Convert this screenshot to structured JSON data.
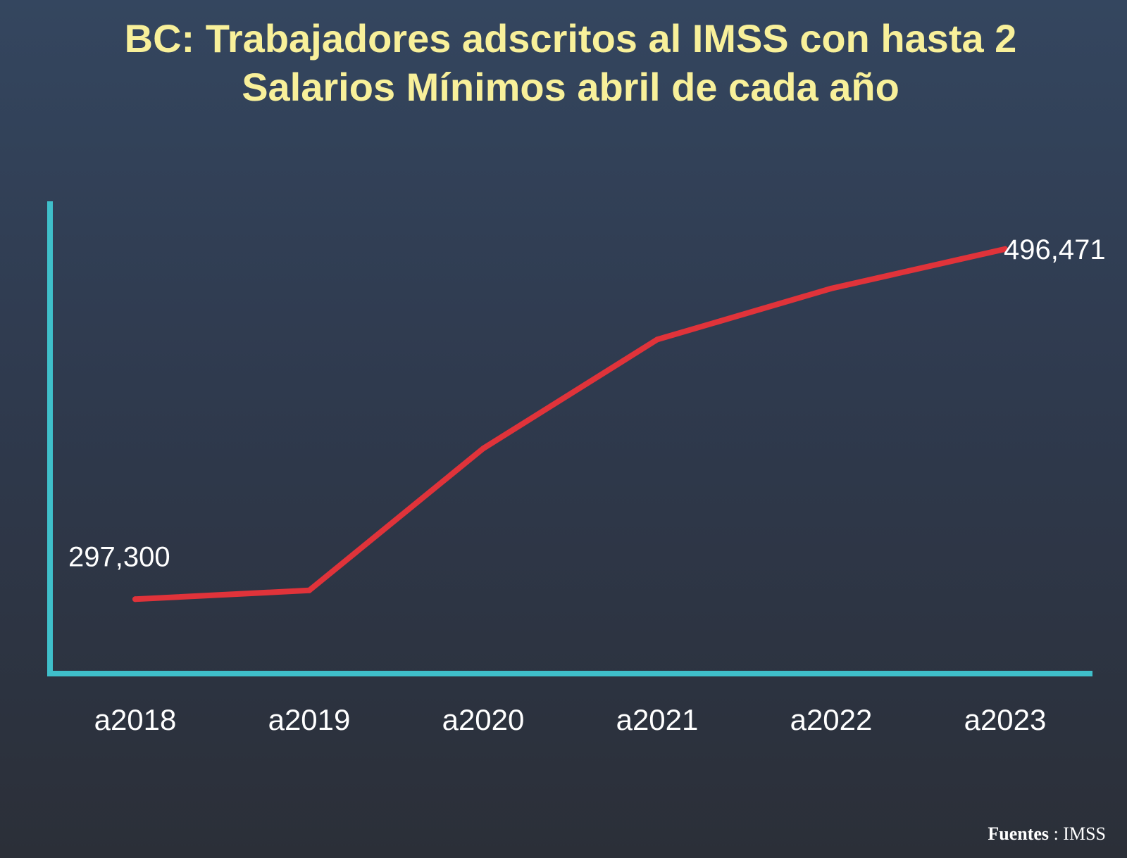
{
  "colors": {
    "title": "#f8f09a",
    "axis": "#3fbfca",
    "line": "#e0333a",
    "text": "#ffffff"
  },
  "chart_data": {
    "type": "line",
    "title": "BC: Trabajadores adscritos al IMSS con hasta 2 Salarios Mínimos abril de cada año",
    "categories": [
      "a2018",
      "a2019",
      "a2020",
      "a2021",
      "a2022",
      "a2023"
    ],
    "series": [
      {
        "values": [
          297300,
          302300,
          383000,
          445000,
          474000,
          496471
        ]
      }
    ],
    "data_labels": [
      {
        "index": 0,
        "text": "297,300"
      },
      {
        "index": 5,
        "text": "496,471"
      }
    ],
    "ylim": [
      255000,
      522000
    ],
    "grid": false,
    "legend": "none"
  },
  "source": {
    "label": "Fuentes",
    "separator": " :  ",
    "value": "IMSS"
  }
}
